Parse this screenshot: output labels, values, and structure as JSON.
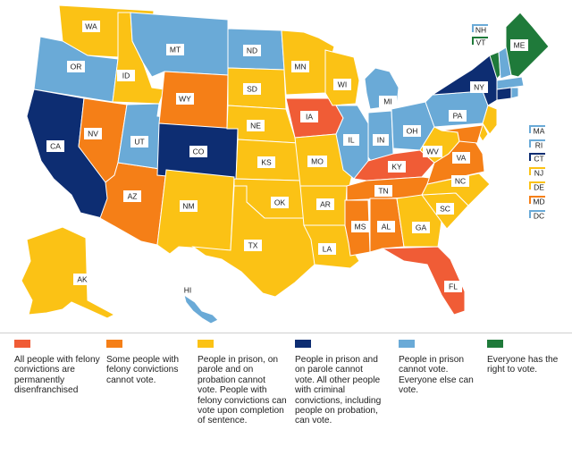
{
  "colors": {
    "cat1": "#f05c36",
    "cat2": "#f57f17",
    "cat3": "#fbc215",
    "cat4": "#0d2d72",
    "cat5": "#6aaad7",
    "cat6": "#1f7a3a",
    "land": "#fbc215"
  },
  "states": [
    {
      "abbr": "WA",
      "category": 3
    },
    {
      "abbr": "OR",
      "category": 5
    },
    {
      "abbr": "CA",
      "category": 4
    },
    {
      "abbr": "ID",
      "category": 3
    },
    {
      "abbr": "NV",
      "category": 2
    },
    {
      "abbr": "AZ",
      "category": 2
    },
    {
      "abbr": "UT",
      "category": 5
    },
    {
      "abbr": "MT",
      "category": 5
    },
    {
      "abbr": "WY",
      "category": 2
    },
    {
      "abbr": "CO",
      "category": 4
    },
    {
      "abbr": "NM",
      "category": 3
    },
    {
      "abbr": "ND",
      "category": 5
    },
    {
      "abbr": "SD",
      "category": 3
    },
    {
      "abbr": "NE",
      "category": 3
    },
    {
      "abbr": "KS",
      "category": 3
    },
    {
      "abbr": "OK",
      "category": 3
    },
    {
      "abbr": "TX",
      "category": 3
    },
    {
      "abbr": "MN",
      "category": 3
    },
    {
      "abbr": "IA",
      "category": 1
    },
    {
      "abbr": "MO",
      "category": 3
    },
    {
      "abbr": "AR",
      "category": 3
    },
    {
      "abbr": "LA",
      "category": 3
    },
    {
      "abbr": "WI",
      "category": 3
    },
    {
      "abbr": "IL",
      "category": 5
    },
    {
      "abbr": "MI",
      "category": 5
    },
    {
      "abbr": "IN",
      "category": 5
    },
    {
      "abbr": "OH",
      "category": 5
    },
    {
      "abbr": "KY",
      "category": 1
    },
    {
      "abbr": "TN",
      "category": 2
    },
    {
      "abbr": "MS",
      "category": 2
    },
    {
      "abbr": "AL",
      "category": 2
    },
    {
      "abbr": "GA",
      "category": 3
    },
    {
      "abbr": "FL",
      "category": 1
    },
    {
      "abbr": "SC",
      "category": 3
    },
    {
      "abbr": "NC",
      "category": 3
    },
    {
      "abbr": "VA",
      "category": 2
    },
    {
      "abbr": "WV",
      "category": 3
    },
    {
      "abbr": "PA",
      "category": 5
    },
    {
      "abbr": "NY",
      "category": 4
    },
    {
      "abbr": "ME",
      "category": 6
    },
    {
      "abbr": "AK",
      "category": 3
    },
    {
      "abbr": "HI",
      "category": 5
    }
  ],
  "small_states": [
    {
      "abbr": "NH",
      "category": 5
    },
    {
      "abbr": "VT",
      "category": 6
    },
    {
      "abbr": "MA",
      "category": 5
    },
    {
      "abbr": "RI",
      "category": 5
    },
    {
      "abbr": "CT",
      "category": 4
    },
    {
      "abbr": "NJ",
      "category": 3
    },
    {
      "abbr": "DE",
      "category": 3
    },
    {
      "abbr": "MD",
      "category": 2
    },
    {
      "abbr": "DC",
      "category": 5
    }
  ],
  "legend": [
    {
      "category": 1,
      "text": "All people with felony convictions are permanently disenfranchised"
    },
    {
      "category": 2,
      "text": "Some people with felony convictions cannot vote."
    },
    {
      "category": 3,
      "text": "People in prison, on parole and on probation cannot vote. People with felony convictions can vote upon completion of sentence."
    },
    {
      "category": 4,
      "text": "People in prison and on parole cannot vote. All other people with criminal convictions, including people on probation, can vote."
    },
    {
      "category": 5,
      "text": "People in prison cannot vote. Everyone else can vote."
    },
    {
      "category": 6,
      "text": "Everyone has the right to vote."
    }
  ]
}
